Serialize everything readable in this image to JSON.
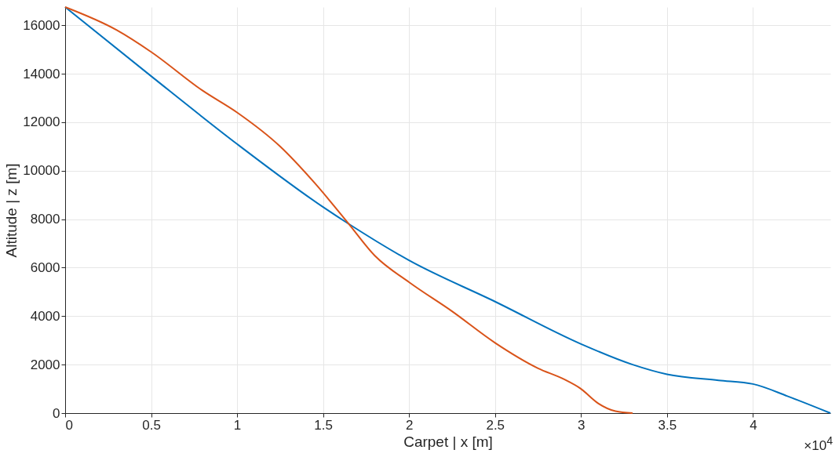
{
  "chart_data": {
    "type": "line",
    "xlabel": "Carpet | x [m]",
    "ylabel": "Altitude | z [m]",
    "annotations": [
      "×10$^{4}$"
    ],
    "xlim": [
      0,
      4.45
    ],
    "ylim": [
      0,
      16750
    ],
    "xticks": [
      0,
      0.5,
      1,
      1.5,
      2,
      2.5,
      3,
      3.5,
      4
    ],
    "yticks": [
      0,
      2000,
      4000,
      6000,
      8000,
      10000,
      12000,
      14000,
      16000
    ],
    "grid": true,
    "legend": false,
    "line_style": "solid",
    "series": [
      {
        "color": "#0072bd",
        "x": [
          0,
          0.5,
          1,
          1.5,
          1.65,
          2,
          2.5,
          3,
          3.3,
          3.5,
          3.8,
          4,
          4.2,
          4.45
        ],
        "values": [
          16750,
          13900,
          11100,
          8500,
          7800,
          6300,
          4600,
          2850,
          2000,
          1600,
          1350,
          1200,
          700,
          0
        ]
      },
      {
        "color": "#d95319",
        "x": [
          0,
          0.3,
          0.5,
          0.8,
          1,
          1.25,
          1.45,
          1.65,
          1.8,
          2,
          2.25,
          2.5,
          2.75,
          2.9,
          3,
          3.1,
          3.2,
          3.3
        ],
        "values": [
          16750,
          15800,
          14900,
          13300,
          12400,
          11000,
          9500,
          7800,
          6500,
          5400,
          4200,
          2900,
          1850,
          1400,
          1000,
          400,
          80,
          0
        ]
      }
    ]
  }
}
